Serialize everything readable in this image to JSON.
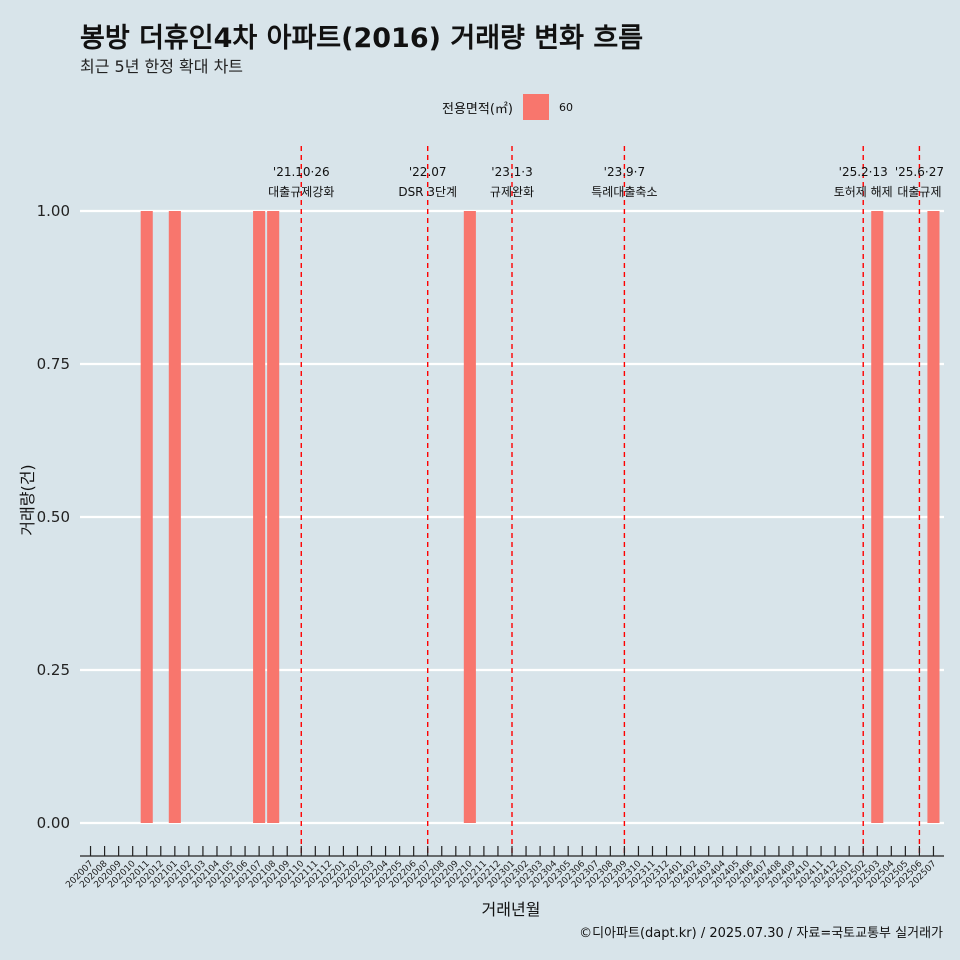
{
  "title": "봉방 더휴인4차 아파트(2016) 거래량 변화 흐름",
  "subtitle": "최근 5년 한정 확대 차트",
  "legend": {
    "title": "전용면적(㎡)",
    "item": "60"
  },
  "caption": "©디아파트(dapt.kr) / 2025.07.30 / 자료=국토교통부 실거래가",
  "colors": {
    "bar": "#f8766d",
    "event_line": "#ff0000",
    "background": "#d8e4ea",
    "grid": "#ffffff"
  },
  "chart_data": {
    "type": "bar",
    "xlabel": "거래년월",
    "ylabel": "거래량(건)",
    "ylim": [
      0,
      1
    ],
    "yticks": [
      "0.00",
      "0.25",
      "0.50",
      "0.75",
      "1.00"
    ],
    "grid": true,
    "legend_position": "top",
    "categories": [
      "202007",
      "202008",
      "202009",
      "202010",
      "202011",
      "202012",
      "202101",
      "202102",
      "202103",
      "202104",
      "202105",
      "202106",
      "202107",
      "202108",
      "202109",
      "202110",
      "202111",
      "202112",
      "202201",
      "202202",
      "202203",
      "202204",
      "202205",
      "202206",
      "202207",
      "202208",
      "202209",
      "202210",
      "202211",
      "202212",
      "202301",
      "202302",
      "202303",
      "202304",
      "202305",
      "202306",
      "202307",
      "202308",
      "202309",
      "202310",
      "202311",
      "202312",
      "202401",
      "202402",
      "202403",
      "202404",
      "202405",
      "202406",
      "202407",
      "202408",
      "202409",
      "202410",
      "202411",
      "202412",
      "202501",
      "202502",
      "202503",
      "202504",
      "202505",
      "202506",
      "202507"
    ],
    "series": [
      {
        "name": "60",
        "values": [
          0,
          0,
          0,
          0,
          1,
          0,
          1,
          0,
          0,
          0,
          0,
          0,
          1,
          1,
          0,
          0,
          0,
          0,
          0,
          0,
          0,
          0,
          0,
          0,
          0,
          0,
          0,
          1,
          0,
          0,
          0,
          0,
          0,
          0,
          0,
          0,
          0,
          0,
          0,
          0,
          0,
          0,
          0,
          0,
          0,
          0,
          0,
          0,
          0,
          0,
          0,
          0,
          0,
          0,
          0,
          0,
          1,
          0,
          0,
          0,
          1
        ]
      }
    ],
    "annotations": [
      {
        "x": "202110",
        "date": "'21.10·26",
        "label": "대출규제강화"
      },
      {
        "x": "202207",
        "date": "'22.07",
        "label": "DSR 3단계"
      },
      {
        "x": "202301",
        "date": "'23.1·3",
        "label": "규제완화"
      },
      {
        "x": "202309",
        "date": "'23.9·7",
        "label": "특례대출축소"
      },
      {
        "x": "202502",
        "date": "'25.2·13",
        "label": "토허제 해제"
      },
      {
        "x": "202506",
        "date": "'25.6·27",
        "label": "대출규제"
      }
    ]
  }
}
